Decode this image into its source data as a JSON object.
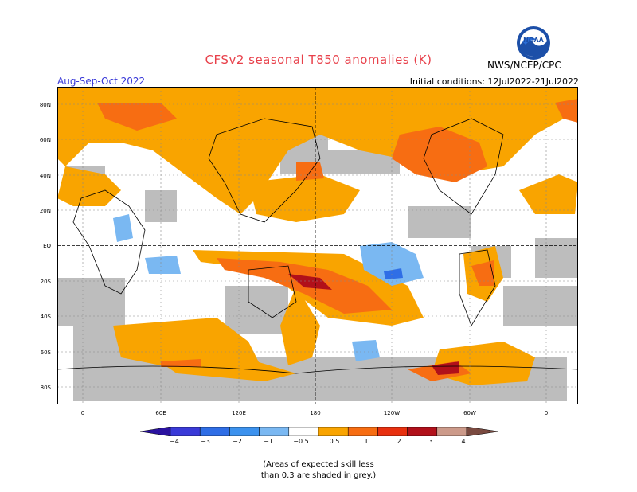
{
  "title": "CFSv2 seasonal T850 anomalies (K)",
  "season": "Aug-Sep-Oct 2022",
  "initial_conditions": "Initial conditions: 12Jul2022-21Jul2022",
  "agency": "NWS/NCEP/CPC",
  "logo_text": "NOAA",
  "lat_labels": [
    "80N",
    "60N",
    "40N",
    "20N",
    "EQ",
    "20S",
    "40S",
    "60S",
    "80S"
  ],
  "lon_labels": [
    "0",
    "60E",
    "120E",
    "180",
    "120W",
    "60W",
    "0"
  ],
  "colorbar": {
    "ticks": [
      "−4",
      "−3",
      "−2",
      "−1",
      "−0.5",
      "0.5",
      "1",
      "2",
      "3",
      "4"
    ],
    "colors": [
      "#2a12a0",
      "#3a3ad8",
      "#2f6ee6",
      "#3c92ee",
      "#7ab8f2",
      "#ffffff",
      "#f9a400",
      "#f76d12",
      "#e8300f",
      "#b1101a",
      "#cc9a8a",
      "#7a4a40"
    ]
  },
  "footnote_line1": "(Areas of expected skill less",
  "footnote_line2": "than 0.3 are shaded in grey.)"
}
